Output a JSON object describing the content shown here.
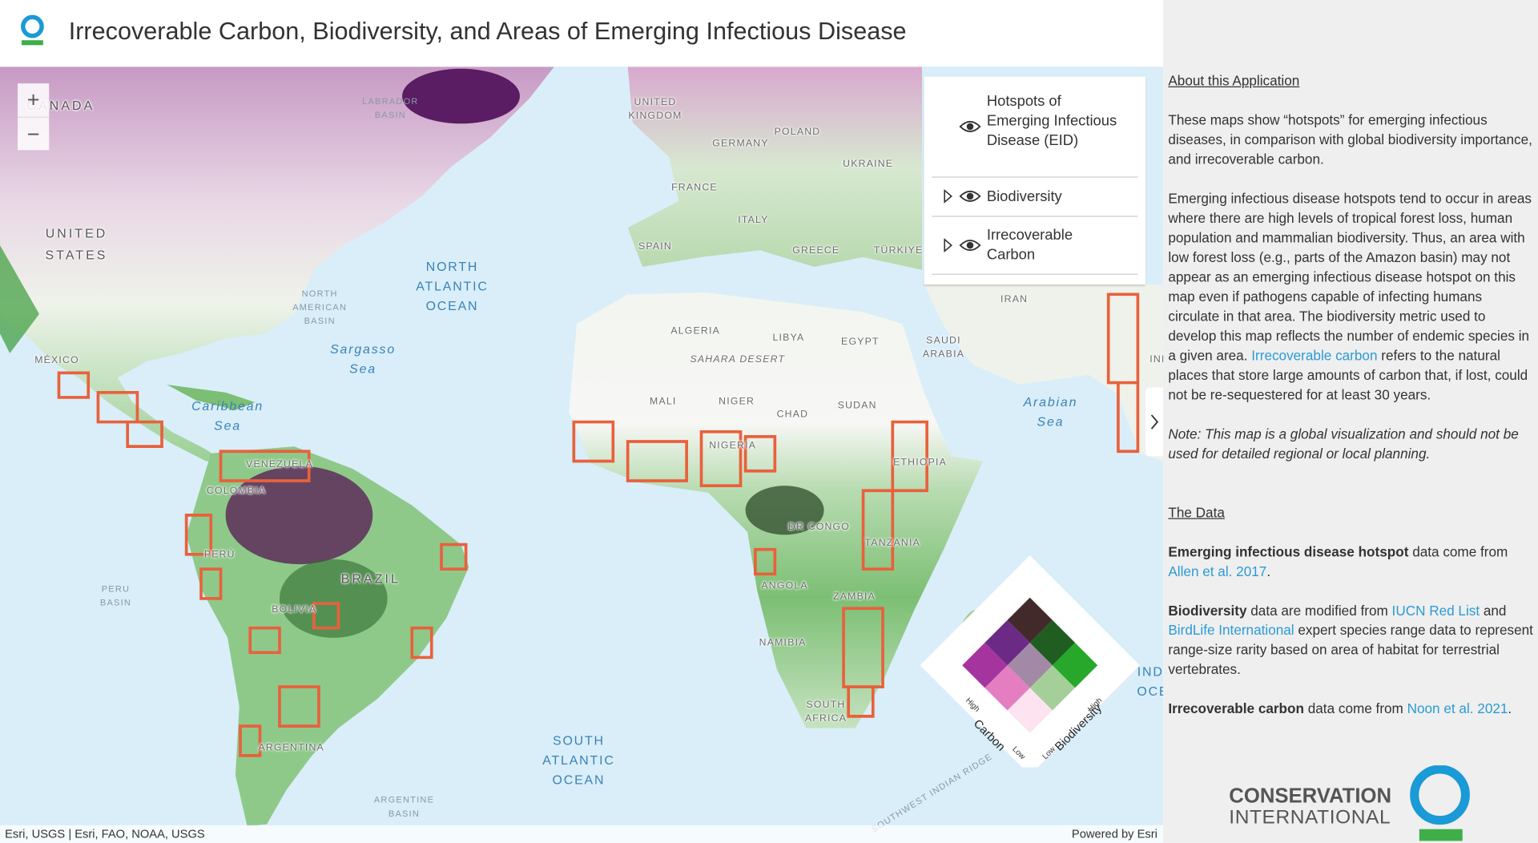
{
  "header": {
    "title": "Irrecoverable Carbon, Biodiversity, and Areas of Emerging Infectious Disease"
  },
  "map": {
    "zoom": [
      "+",
      "−"
    ],
    "labels": [
      "LABRADOR\nBASIN",
      "CANADA",
      "UNITED\nKINGDOM",
      "POLAND",
      "GERMANY",
      "UKRAINE",
      "FRANCE",
      "ITALY",
      "SPAIN",
      "GREECE",
      "TÜRKIYE",
      "IRAN",
      "UNITED\nSTATES",
      "NORTH\nATLANTIC\nOCEAN",
      "NORTH\nAMERICAN\nBASIN",
      "Sargasso\nSea",
      "MÉXICO",
      "Caribbean\nSea",
      "ALGERIA",
      "LIBYA",
      "EGYPT",
      "SAUDI\nARABIA",
      "SAHARA DESERT",
      "MALI",
      "NIGER",
      "CHAD",
      "SUDAN",
      "Arabian\nSea",
      "INDIA",
      "NIGERIA",
      "VENEZUELA",
      "ETHIOPIA",
      "COLOMBIA",
      "DR CONGO",
      "TANZANIA",
      "PERÚ",
      "BRAZIL",
      "PERU\nBASIN",
      "ANGOLA",
      "ZAMBIA",
      "BOLIVIA",
      "NAMIBIA",
      "SOUTH\nAFRICA",
      "ARGENTINA",
      "SOUTH\nATLANTIC\nOCEAN",
      "ARGENTINE\nBASIN",
      "INDIAN\nOCEAN",
      "SOUTHWEST INDIAN RIDGE"
    ],
    "attribution": "Esri, USGS | Esri, FAO, NOAA, USGS",
    "powered_by": "Powered by Esri"
  },
  "layers": [
    "Hotspots of Emerging Infectious Disease (EID)",
    "Biodiversity",
    "Irrecoverable Carbon"
  ],
  "legend": {
    "carbon": "Carbon",
    "biodiversity": "Biodiversity",
    "high": "High",
    "low": "Low"
  },
  "sidebar": {
    "about_heading": "About this Application",
    "paragraphs": [
      [
        "These maps show “hotspots” for emerging infectious diseases, in comparison with global biodiversity importance, and irrecoverable carbon."
      ],
      [
        "Emerging infectious disease hotspots tend to occur in areas where there are high levels of tropical forest loss, human population and mammalian biodiversity. Thus, an area with low forest loss (e.g., parts of the Amazon basin) may not appear as an emerging infectious disease hotspot on this map even if pathogens capable of infecting humans circulate in that area. The biodiversity metric used to develop this map reflects the number of endemic species in a given area. ",
        "Irrecoverable carbon",
        " refers to the natural places that store large amounts of carbon that, if lost, could not be re-sequestered for at least 30 years."
      ],
      [
        "Note: This map is a global visualization and should not be used for detailed regional or local planning."
      ]
    ],
    "data_heading": "The Data",
    "data_paragraphs": [
      [
        "Emerging infectious disease hotspot",
        " data come from ",
        "Allen et al. 2017",
        "."
      ],
      [
        "Biodiversity",
        " data are modified from ",
        "IUCN Red List",
        " and ",
        "BirdLife International",
        " expert species range data to represent range-size rarity based on area of habitat for terrestrial vertebrates."
      ],
      [
        "Irrecoverable carbon",
        " data come from ",
        "Noon et al. 2021",
        "."
      ]
    ],
    "logo": [
      "CONSERVATION",
      "INTERNATIONAL"
    ]
  }
}
